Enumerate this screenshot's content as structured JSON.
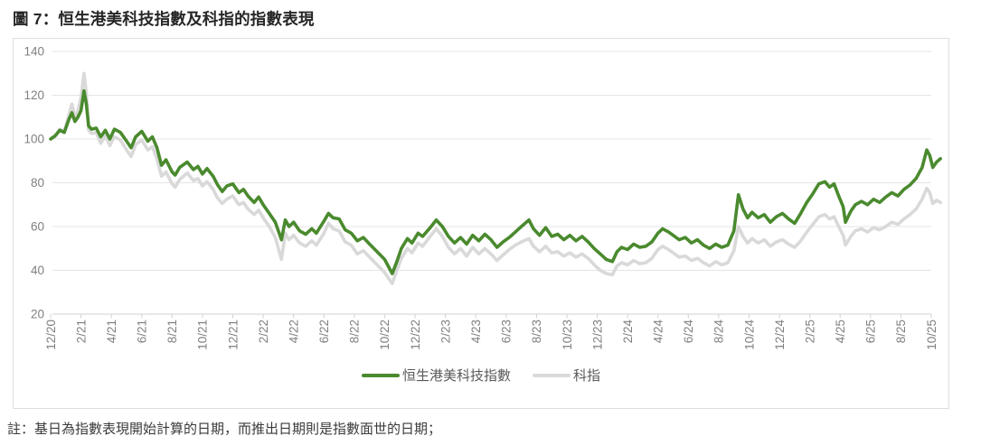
{
  "title": "圖 7：恒生港美科技指數及科指的指數表現",
  "note": "註：基日為指數表現開始計算的日期，而推出日期則是指數面世的日期；",
  "colors": {
    "hstech_hkus_line": "#4A8A2E",
    "tech_index_line": "#D9D9D9",
    "gridline": "#E4E4E4",
    "axis": "#D2D2D2",
    "tick_label": "#808080",
    "legend_text": "#595959"
  },
  "chart_data": {
    "type": "line",
    "title": "圖 7：恒生港美科技指數及科指的指數表現",
    "grid": "horizontal",
    "legend_position": "bottom",
    "x_axis": {
      "labels": [
        "12/20",
        "2/21",
        "4/21",
        "6/21",
        "8/21",
        "10/21",
        "12/21",
        "2/22",
        "4/22",
        "6/22",
        "8/22",
        "10/22",
        "12/22",
        "2/23",
        "4/23",
        "6/23",
        "8/23",
        "10/23",
        "12/23",
        "2/24",
        "4/24",
        "6/24",
        "8/24",
        "10/24",
        "12/24",
        "2/25",
        "4/25",
        "6/25",
        "8/25",
        "10/25"
      ],
      "months_per_tick": 2
    },
    "y_axis": {
      "min": 20,
      "max": 140,
      "step": 20,
      "ticks": [
        140,
        120,
        100,
        80,
        60,
        40,
        20
      ]
    },
    "t_months_since_dec_2020": [
      0,
      0.3,
      0.6,
      0.9,
      1.2,
      1.4,
      1.6,
      1.8,
      2.0,
      2.2,
      2.35,
      2.5,
      2.7,
      3.0,
      3.3,
      3.6,
      3.9,
      4.2,
      4.6,
      5.0,
      5.3,
      5.6,
      6.0,
      6.4,
      6.7,
      7.0,
      7.3,
      7.6,
      8.0,
      8.2,
      8.5,
      9.0,
      9.4,
      9.7,
      10.0,
      10.3,
      10.7,
      11.0,
      11.3,
      11.6,
      12.0,
      12.4,
      12.7,
      13.0,
      13.4,
      13.7,
      14.0,
      14.4,
      14.8,
      15.2,
      15.45,
      15.7,
      16.0,
      16.4,
      16.8,
      17.2,
      17.5,
      18.0,
      18.3,
      18.6,
      19.0,
      19.4,
      19.8,
      20.2,
      20.6,
      21.0,
      21.5,
      22.0,
      22.5,
      22.8,
      23.1,
      23.5,
      23.8,
      24.2,
      24.5,
      25.0,
      25.4,
      25.8,
      26.2,
      26.6,
      27.0,
      27.4,
      27.8,
      28.2,
      28.6,
      29.0,
      29.4,
      29.8,
      30.2,
      30.6,
      31.0,
      31.5,
      31.8,
      32.2,
      32.6,
      33.0,
      33.4,
      33.8,
      34.2,
      34.6,
      35.0,
      35.4,
      35.8,
      36.2,
      36.6,
      37.0,
      37.3,
      37.6,
      38.0,
      38.4,
      38.8,
      39.2,
      39.6,
      40.0,
      40.3,
      40.7,
      41.0,
      41.4,
      41.8,
      42.2,
      42.6,
      43.0,
      43.4,
      43.8,
      44.2,
      44.6,
      45.0,
      45.3,
      45.6,
      45.9,
      46.2,
      46.6,
      47.0,
      47.4,
      47.8,
      48.2,
      48.6,
      49.0,
      49.4,
      49.8,
      50.2,
      50.6,
      51.0,
      51.3,
      51.6,
      51.9,
      52.2,
      52.35,
      52.7,
      53.0,
      53.4,
      53.8,
      54.2,
      54.6,
      55.0,
      55.4,
      55.8,
      56.2,
      56.6,
      57.0,
      57.4,
      57.7,
      57.9,
      58.1,
      58.35,
      58.6
    ],
    "series": [
      {
        "name": "恒生港美科技指數",
        "color": "#4A8A2E",
        "values": [
          100,
          101.5,
          104,
          103,
          109,
          112,
          108,
          110,
          113,
          122,
          116,
          106,
          104.5,
          105,
          101,
          104,
          100,
          104.5,
          103,
          99,
          96,
          101,
          103.5,
          99,
          101,
          96,
          88,
          90.5,
          85,
          83.5,
          87,
          89.5,
          86,
          87.5,
          84,
          86.5,
          83,
          79,
          76,
          78.5,
          79.5,
          75.5,
          77,
          74,
          71,
          73.5,
          70,
          66,
          62,
          54,
          63,
          60,
          62,
          58,
          56.5,
          59,
          57,
          62.5,
          66,
          64,
          63.5,
          58.5,
          57,
          53.5,
          55,
          52,
          48.5,
          45,
          38.5,
          44,
          50,
          54.5,
          52.5,
          57,
          55.5,
          59.5,
          63,
          60,
          55.5,
          52.5,
          55,
          52,
          56,
          53.5,
          56.5,
          54,
          50.5,
          53,
          55,
          57.5,
          60,
          63,
          59,
          56,
          59.5,
          55.5,
          56.5,
          54,
          56,
          53.5,
          55.5,
          53,
          50,
          47.5,
          45,
          44,
          48.5,
          50.5,
          49.5,
          52,
          50.5,
          51,
          53,
          57,
          59,
          57.5,
          56,
          54,
          55,
          52.5,
          54,
          51.5,
          50,
          52,
          50.5,
          51.5,
          58,
          74.5,
          68,
          64,
          66.5,
          64,
          65.5,
          62,
          64.5,
          66,
          63.5,
          61.5,
          66,
          71,
          75,
          79.5,
          80.5,
          78,
          79.5,
          74,
          69,
          62,
          67,
          70,
          71.5,
          70,
          72.5,
          71,
          73.5,
          75.5,
          74,
          77,
          79,
          82,
          87,
          95,
          92.5,
          87,
          89.5,
          91
        ]
      },
      {
        "name": "科指",
        "color": "#D9D9D9",
        "values": [
          100,
          101,
          104.5,
          103.5,
          111,
          116,
          110,
          113,
          119,
          130,
          121,
          104,
          102.5,
          103,
          98,
          101.5,
          97,
          101,
          99.5,
          95,
          92,
          97.5,
          99.5,
          95,
          96.5,
          91,
          83,
          85,
          79.5,
          78,
          81.5,
          84.5,
          81,
          82,
          78.5,
          80.5,
          77,
          73,
          70.5,
          72.5,
          74,
          70,
          71,
          68,
          65.5,
          67.5,
          64,
          60,
          55,
          45,
          57,
          54,
          56,
          52.5,
          51,
          53.5,
          51.5,
          57,
          61.5,
          59,
          58,
          53,
          51.5,
          47.5,
          49,
          46,
          42.5,
          39,
          34,
          40,
          45.5,
          50,
          48,
          52.5,
          51,
          55.5,
          59,
          55.5,
          50.5,
          47.5,
          50,
          46.5,
          50.5,
          47.5,
          50,
          47.5,
          44.5,
          47,
          49.5,
          51.5,
          53,
          54.5,
          51,
          48.5,
          51,
          48,
          48.5,
          46.5,
          48,
          46,
          47.5,
          45.5,
          42.5,
          40,
          38.5,
          38,
          42,
          43.5,
          42.5,
          44.5,
          43,
          43.5,
          45.5,
          49.5,
          51,
          49.5,
          48,
          46,
          46.5,
          44.5,
          45.5,
          43.5,
          42,
          44,
          42.5,
          43.5,
          49,
          60,
          55.5,
          52.5,
          54.5,
          52.5,
          54,
          51,
          53,
          54,
          52,
          50.5,
          53.5,
          57.5,
          61,
          64.5,
          65.5,
          63.5,
          64.5,
          60,
          56,
          51.5,
          55.5,
          58,
          59,
          57.5,
          59.5,
          58.5,
          60,
          62,
          61,
          63.5,
          65.5,
          68,
          72.5,
          77.5,
          75.5,
          70.5,
          72,
          71
        ]
      }
    ]
  }
}
